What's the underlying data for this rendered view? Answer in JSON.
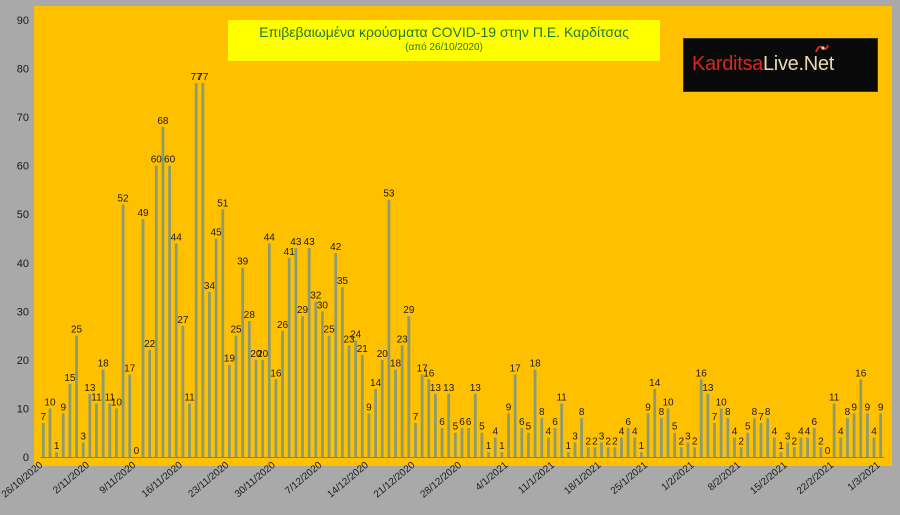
{
  "chart_data": {
    "type": "bar",
    "title": "Επιβεβαιωμένα κρούσματα COVID-19 στην Π.Ε. Καρδίτσας",
    "subtitle": "(από 26/10/2020)",
    "ylim": [
      0,
      90
    ],
    "yticks": [
      0,
      10,
      20,
      30,
      40,
      50,
      60,
      70,
      80,
      90
    ],
    "grid": false,
    "colors": {
      "background": "#ffc000",
      "bar": "#8c9b70",
      "text": "#1a1a1a",
      "axis": "#7f7f7f"
    },
    "xticks": [
      {
        "index": 0,
        "label": "26/10/2020"
      },
      {
        "index": 7,
        "label": "2/11/2020"
      },
      {
        "index": 14,
        "label": "9/11/2020"
      },
      {
        "index": 21,
        "label": "16/11/2020"
      },
      {
        "index": 28,
        "label": "23/11/2020"
      },
      {
        "index": 35,
        "label": "30/11/2020"
      },
      {
        "index": 42,
        "label": "7/12/2020"
      },
      {
        "index": 49,
        "label": "14/12/2020"
      },
      {
        "index": 56,
        "label": "21/12/2020"
      },
      {
        "index": 63,
        "label": "28/12/2020"
      },
      {
        "index": 70,
        "label": "4/1/2021"
      },
      {
        "index": 77,
        "label": "11/1/2021"
      },
      {
        "index": 84,
        "label": "18/1/2021"
      },
      {
        "index": 91,
        "label": "25/1/2021"
      },
      {
        "index": 98,
        "label": "1/2/2021"
      },
      {
        "index": 105,
        "label": "8/2/2021"
      },
      {
        "index": 112,
        "label": "15/2/2021"
      },
      {
        "index": 119,
        "label": "22/2/2021"
      },
      {
        "index": 126,
        "label": "1/3/2021"
      }
    ],
    "values": [
      7,
      10,
      1,
      9,
      15,
      25,
      3,
      13,
      11,
      18,
      11,
      10,
      52,
      17,
      0,
      49,
      22,
      60,
      68,
      60,
      44,
      27,
      11,
      77,
      77,
      34,
      45,
      51,
      19,
      25,
      39,
      28,
      20,
      20,
      44,
      16,
      26,
      41,
      43,
      29,
      43,
      32,
      30,
      25,
      42,
      35,
      23,
      24,
      21,
      9,
      14,
      20,
      53,
      18,
      23,
      29,
      7,
      17,
      16,
      13,
      6,
      13,
      5,
      6,
      6,
      13,
      5,
      1,
      4,
      1,
      9,
      17,
      6,
      5,
      18,
      8,
      4,
      6,
      11,
      1,
      3,
      8,
      2,
      2,
      3,
      2,
      2,
      4,
      6,
      4,
      1,
      9,
      14,
      8,
      10,
      5,
      2,
      3,
      2,
      16,
      13,
      7,
      10,
      8,
      4,
      2,
      5,
      8,
      7,
      8,
      4,
      1,
      3,
      2,
      4,
      4,
      6,
      2,
      0,
      11,
      4,
      8,
      9,
      16,
      9,
      4,
      9
    ]
  },
  "logo": {
    "part1": "Karditsa",
    "part2": "Live",
    "part3": ".Net"
  }
}
